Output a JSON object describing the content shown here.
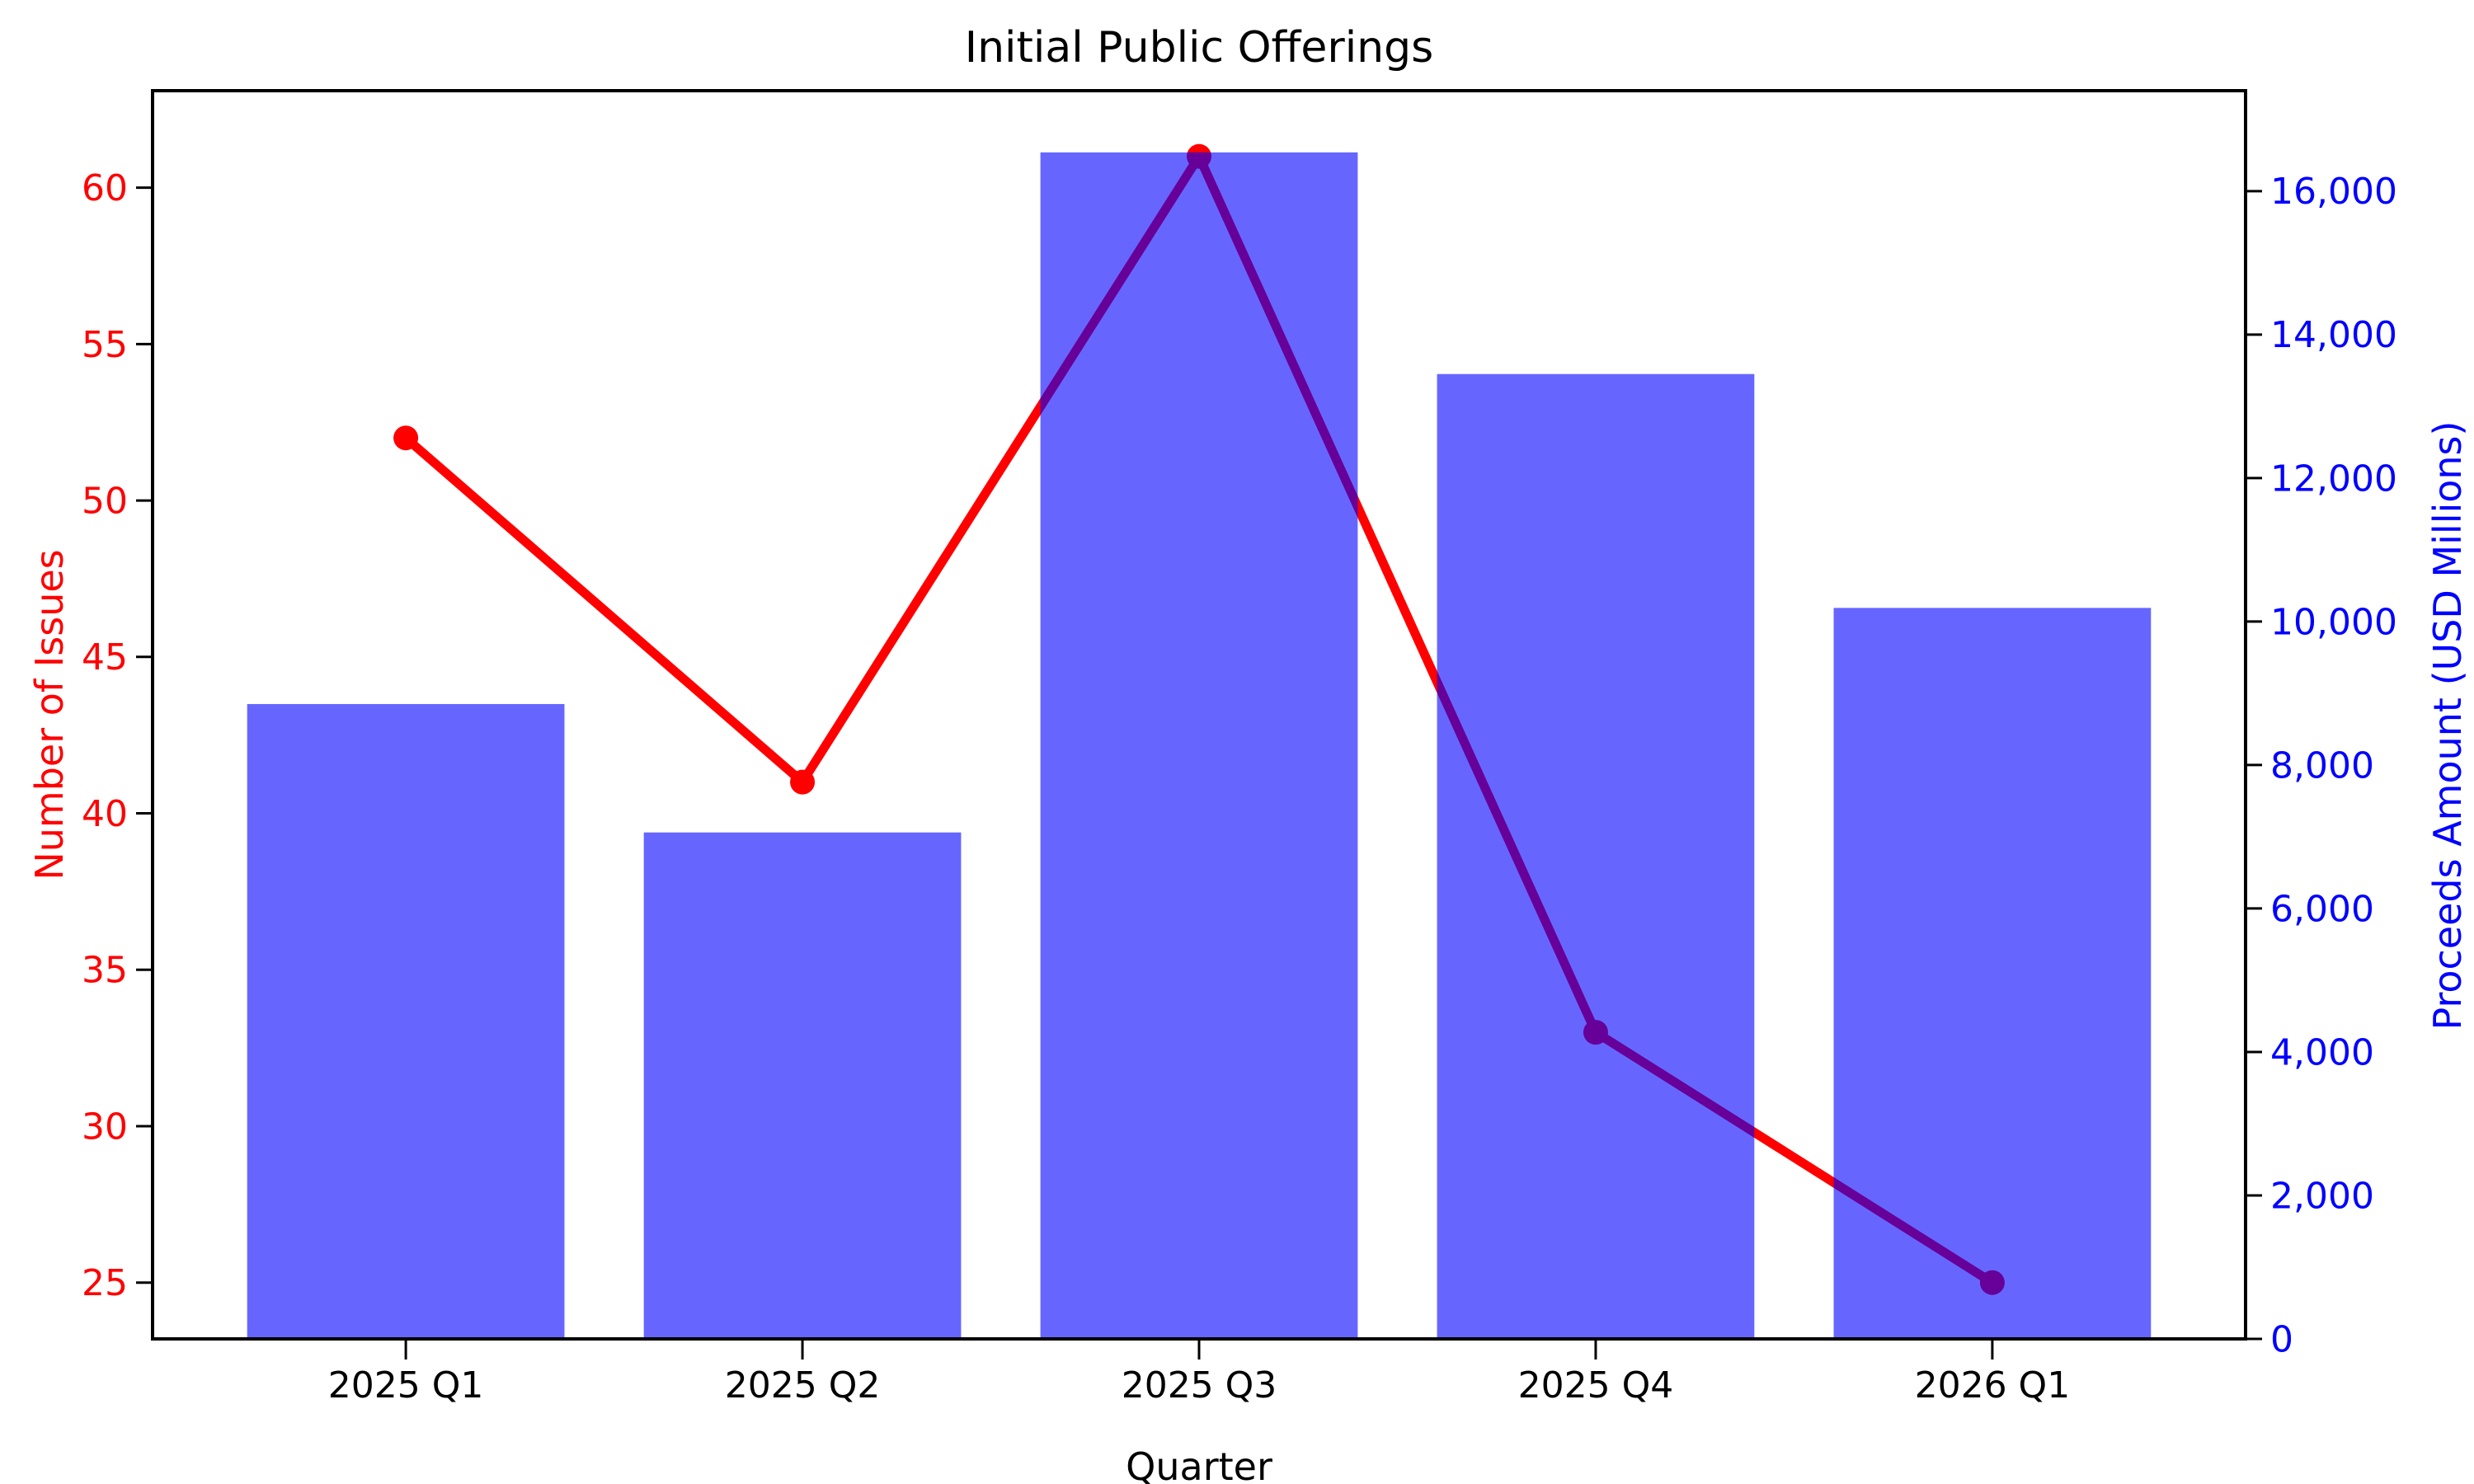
{
  "chart_data": {
    "type": "bar",
    "subtype": "bar-and-line-dual-axis",
    "title": "Initial Public Offerings",
    "xlabel": "Quarter",
    "ylabel_left": "Number of Issues",
    "ylabel_right": "Proceeds Amount (USD Millions)",
    "categories": [
      "2025 Q1",
      "2025 Q2",
      "2025 Q3",
      "2025 Q4",
      "2026 Q1"
    ],
    "series": [
      {
        "name": "Number of Issues",
        "type": "line",
        "axis": "left",
        "color": "#ff0000",
        "marker": "circle",
        "values": [
          52,
          41,
          61,
          33,
          25
        ]
      },
      {
        "name": "Proceeds Amount (USD Millions)",
        "type": "bar",
        "axis": "right",
        "color": "#0000ff",
        "opacity": 0.6,
        "values": [
          8850,
          7060,
          16540,
          13450,
          10190
        ]
      }
    ],
    "left_axis": {
      "min": 23.2,
      "max": 63.1,
      "ticks": [
        25,
        30,
        35,
        40,
        45,
        50,
        55,
        60
      ],
      "tick_color": "#ff0000"
    },
    "right_axis": {
      "min": 0,
      "max": 17400,
      "ticks": [
        0,
        2000,
        4000,
        6000,
        8000,
        10000,
        12000,
        14000,
        16000
      ],
      "tick_color": "#0000ff",
      "tick_format": "thousands-comma"
    },
    "grid": false,
    "legend": "none",
    "notes": "red line drawn beneath semi-transparent blue bars; overlap renders purple"
  }
}
